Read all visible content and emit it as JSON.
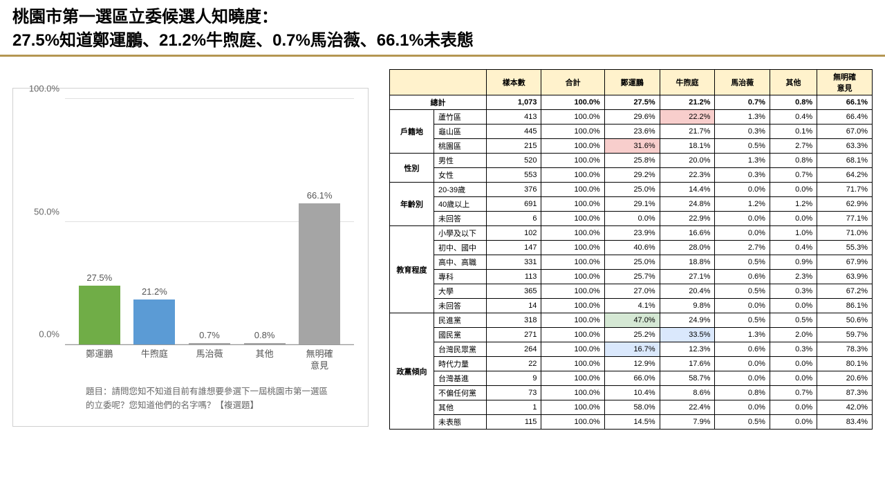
{
  "title_line1": "桃園市第一選區立委候選人知曉度：",
  "title_line2": "27.5%知道鄭運鵬、21.2%牛煦庭、0.7%馬治薇、66.1%未表態",
  "title_underline_color": "#b49652",
  "chart": {
    "type": "bar",
    "ymax": 100,
    "ytick_step": 50,
    "ytick_labels": [
      "0.0%",
      "50.0%",
      "100.0%"
    ],
    "categories": [
      "鄭運鵬",
      "牛煦庭",
      "馬治薇",
      "其他",
      "無明確\n意見"
    ],
    "values": [
      27.5,
      21.2,
      0.7,
      0.8,
      66.1
    ],
    "value_labels": [
      "27.5%",
      "21.2%",
      "0.7%",
      "0.8%",
      "66.1%"
    ],
    "bar_colors": [
      "#70ad47",
      "#5b9bd5",
      "#a5a5a5",
      "#a5a5a5",
      "#a5a5a5"
    ],
    "grid_color": "#e0e0e0",
    "axis_color": "#999999",
    "label_fontsize": 13,
    "label_color": "#666666",
    "question_text": "題目：請問您知不知道目前有誰想要參選下一屆桃園市第一選區的立委呢？您知道他們的名字嗎？【複選題】"
  },
  "table": {
    "header_row": [
      "樣本數",
      "合計",
      "鄭運鵬",
      "牛煦庭",
      "馬治薇",
      "其他",
      "無明確意見"
    ],
    "header_bg": "#fff2cc",
    "total_label": "總計",
    "total_row": [
      "1,073",
      "100.0%",
      "27.5%",
      "21.2%",
      "0.7%",
      "0.8%",
      "66.1%"
    ],
    "groups": [
      {
        "name": "戶籍地",
        "rows": [
          {
            "label": "蘆竹區",
            "cells": [
              "413",
              "100.0%",
              "29.6%",
              "22.2%",
              "1.3%",
              "0.4%",
              "66.4%"
            ],
            "hl": {
              "3": "hl-pink"
            }
          },
          {
            "label": "龜山區",
            "cells": [
              "445",
              "100.0%",
              "23.6%",
              "21.7%",
              "0.3%",
              "0.1%",
              "67.0%"
            ]
          },
          {
            "label": "桃園區",
            "cells": [
              "215",
              "100.0%",
              "31.6%",
              "18.1%",
              "0.5%",
              "2.7%",
              "63.3%"
            ],
            "hl": {
              "2": "hl-pink"
            }
          }
        ]
      },
      {
        "name": "性別",
        "rows": [
          {
            "label": "男性",
            "cells": [
              "520",
              "100.0%",
              "25.8%",
              "20.0%",
              "1.3%",
              "0.8%",
              "68.1%"
            ]
          },
          {
            "label": "女性",
            "cells": [
              "553",
              "100.0%",
              "29.2%",
              "22.3%",
              "0.3%",
              "0.7%",
              "64.2%"
            ]
          }
        ]
      },
      {
        "name": "年齡別",
        "rows": [
          {
            "label": "20-39歲",
            "cells": [
              "376",
              "100.0%",
              "25.0%",
              "14.4%",
              "0.0%",
              "0.0%",
              "71.7%"
            ]
          },
          {
            "label": "40歲以上",
            "cells": [
              "691",
              "100.0%",
              "29.1%",
              "24.8%",
              "1.2%",
              "1.2%",
              "62.9%"
            ]
          },
          {
            "label": "未回答",
            "cells": [
              "6",
              "100.0%",
              "0.0%",
              "22.9%",
              "0.0%",
              "0.0%",
              "77.1%"
            ]
          }
        ]
      },
      {
        "name": "教育程度",
        "rows": [
          {
            "label": "小學及以下",
            "cells": [
              "102",
              "100.0%",
              "23.9%",
              "16.6%",
              "0.0%",
              "1.0%",
              "71.0%"
            ]
          },
          {
            "label": "初中、國中",
            "cells": [
              "147",
              "100.0%",
              "40.6%",
              "28.0%",
              "2.7%",
              "0.4%",
              "55.3%"
            ]
          },
          {
            "label": "高中、高職",
            "cells": [
              "331",
              "100.0%",
              "25.0%",
              "18.8%",
              "0.5%",
              "0.9%",
              "67.9%"
            ]
          },
          {
            "label": "專科",
            "cells": [
              "113",
              "100.0%",
              "25.7%",
              "27.1%",
              "0.6%",
              "2.3%",
              "63.9%"
            ]
          },
          {
            "label": "大學",
            "cells": [
              "365",
              "100.0%",
              "27.0%",
              "20.4%",
              "0.5%",
              "0.3%",
              "67.2%"
            ]
          },
          {
            "label": "未回答",
            "cells": [
              "14",
              "100.0%",
              "4.1%",
              "9.8%",
              "0.0%",
              "0.0%",
              "86.1%"
            ]
          }
        ]
      },
      {
        "name": "政黨傾向",
        "rows": [
          {
            "label": "民進黨",
            "cells": [
              "318",
              "100.0%",
              "47.0%",
              "24.9%",
              "0.5%",
              "0.5%",
              "50.6%"
            ],
            "hl": {
              "2": "hl-green"
            }
          },
          {
            "label": "國民黨",
            "cells": [
              "271",
              "100.0%",
              "25.2%",
              "33.5%",
              "1.3%",
              "2.0%",
              "59.7%"
            ],
            "hl": {
              "3": "hl-blue"
            }
          },
          {
            "label": "台灣民眾黨",
            "cells": [
              "264",
              "100.0%",
              "16.7%",
              "12.3%",
              "0.6%",
              "0.3%",
              "78.3%"
            ],
            "hl": {
              "2": "hl-blue"
            }
          },
          {
            "label": "時代力量",
            "cells": [
              "22",
              "100.0%",
              "12.9%",
              "17.6%",
              "0.0%",
              "0.0%",
              "80.1%"
            ]
          },
          {
            "label": "台灣基進",
            "cells": [
              "9",
              "100.0%",
              "66.0%",
              "58.7%",
              "0.0%",
              "0.0%",
              "20.6%"
            ]
          },
          {
            "label": "不偏任何黨",
            "cells": [
              "73",
              "100.0%",
              "10.4%",
              "8.6%",
              "0.8%",
              "0.7%",
              "87.3%"
            ]
          },
          {
            "label": "其他",
            "cells": [
              "1",
              "100.0%",
              "58.0%",
              "22.4%",
              "0.0%",
              "0.0%",
              "42.0%"
            ]
          },
          {
            "label": "未表態",
            "cells": [
              "115",
              "100.0%",
              "14.5%",
              "7.9%",
              "0.5%",
              "0.0%",
              "83.4%"
            ]
          }
        ]
      }
    ]
  }
}
